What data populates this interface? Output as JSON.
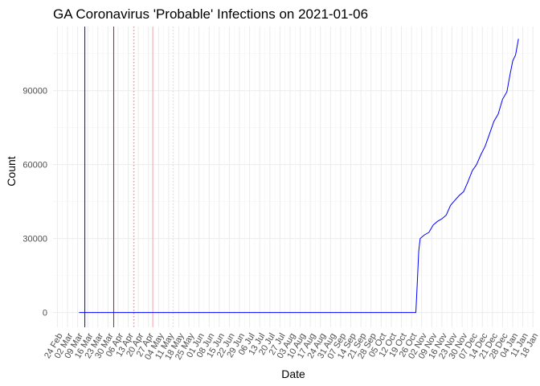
{
  "chart_data": {
    "type": "line",
    "title": "GA Coronavirus 'Probable' Infections on 2021-01-06",
    "xlabel": "Date",
    "ylabel": "Count",
    "x_range": [
      "2020-02-21",
      "2021-01-19"
    ],
    "y_range": [
      -6000,
      116000
    ],
    "y_ticks": [
      0,
      30000,
      60000,
      90000
    ],
    "y_tick_labels": [
      "0",
      "30000",
      "60000",
      "90000"
    ],
    "x_ticks": [
      "2020-02-24",
      "2020-03-02",
      "2020-03-09",
      "2020-03-16",
      "2020-03-23",
      "2020-03-30",
      "2020-04-06",
      "2020-04-13",
      "2020-04-20",
      "2020-04-27",
      "2020-05-04",
      "2020-05-11",
      "2020-05-18",
      "2020-05-25",
      "2020-06-01",
      "2020-06-08",
      "2020-06-15",
      "2020-06-22",
      "2020-06-29",
      "2020-07-06",
      "2020-07-13",
      "2020-07-20",
      "2020-07-27",
      "2020-08-03",
      "2020-08-10",
      "2020-08-17",
      "2020-08-24",
      "2020-08-31",
      "2020-09-07",
      "2020-09-14",
      "2020-09-21",
      "2020-09-28",
      "2020-10-05",
      "2020-10-12",
      "2020-10-19",
      "2020-10-26",
      "2020-11-02",
      "2020-11-09",
      "2020-11-16",
      "2020-11-23",
      "2020-11-30",
      "2020-12-07",
      "2020-12-14",
      "2020-12-21",
      "2020-12-28",
      "2021-01-04",
      "2021-01-11",
      "2021-01-18"
    ],
    "x_tick_labels": [
      "24 Feb",
      "02 Mar",
      "09 Mar",
      "16 Mar",
      "23 Mar",
      "30 Mar",
      "06 Apr",
      "13 Apr",
      "20 Apr",
      "27 Apr",
      "04 May",
      "11 May",
      "18 May",
      "25 May",
      "01 Jun",
      "08 Jun",
      "15 Jun",
      "22 Jun",
      "29 Jun",
      "06 Jul",
      "13 Jul",
      "20 Jul",
      "27 Jul",
      "03 Aug",
      "10 Aug",
      "17 Aug",
      "24 Aug",
      "31 Aug",
      "07 Sep",
      "14 Sep",
      "21 Sep",
      "28 Sep",
      "05 Oct",
      "12 Oct",
      "19 Oct",
      "26 Oct",
      "02 Nov",
      "09 Nov",
      "16 Nov",
      "23 Nov",
      "30 Nov",
      "07 Dec",
      "14 Dec",
      "21 Dec",
      "28 Dec",
      "04 Jan",
      "11 Jan",
      "18 Jan"
    ],
    "grid": true,
    "legend": "none",
    "vlines": [
      {
        "x": "2020-03-14",
        "color": "#0000ff",
        "style": "solid"
      },
      {
        "x": "2020-04-03",
        "color": "#b22222",
        "style": "solid"
      },
      {
        "x": "2020-04-17",
        "color": "#e0707a",
        "style": "dotted"
      },
      {
        "x": "2020-04-30",
        "color": "#f0a8b0",
        "style": "solid"
      },
      {
        "x": "2020-05-14",
        "color": "#f5c8cd",
        "style": "dotted"
      }
    ],
    "series": [
      {
        "color": "#0000ff",
        "points": [
          [
            "2020-03-10",
            0
          ],
          [
            "2020-10-29",
            0
          ],
          [
            "2020-10-30",
            12000
          ],
          [
            "2020-10-31",
            25000
          ],
          [
            "2020-11-01",
            30000
          ],
          [
            "2020-11-04",
            31500
          ],
          [
            "2020-11-07",
            32500
          ],
          [
            "2020-11-10",
            35500
          ],
          [
            "2020-11-13",
            37000
          ],
          [
            "2020-11-16",
            38000
          ],
          [
            "2020-11-19",
            39500
          ],
          [
            "2020-11-22",
            43500
          ],
          [
            "2020-11-25",
            45500
          ],
          [
            "2020-11-28",
            47500
          ],
          [
            "2020-12-01",
            49000
          ],
          [
            "2020-12-04",
            53000
          ],
          [
            "2020-12-07",
            57500
          ],
          [
            "2020-12-10",
            60000
          ],
          [
            "2020-12-13",
            64000
          ],
          [
            "2020-12-16",
            67500
          ],
          [
            "2020-12-19",
            72500
          ],
          [
            "2020-12-22",
            77500
          ],
          [
            "2020-12-25",
            80500
          ],
          [
            "2020-12-28",
            86500
          ],
          [
            "2020-12-31",
            89500
          ],
          [
            "2021-01-02",
            96000
          ],
          [
            "2021-01-04",
            102000
          ],
          [
            "2021-01-06",
            104500
          ],
          [
            "2021-01-08",
            111000
          ]
        ]
      }
    ]
  }
}
